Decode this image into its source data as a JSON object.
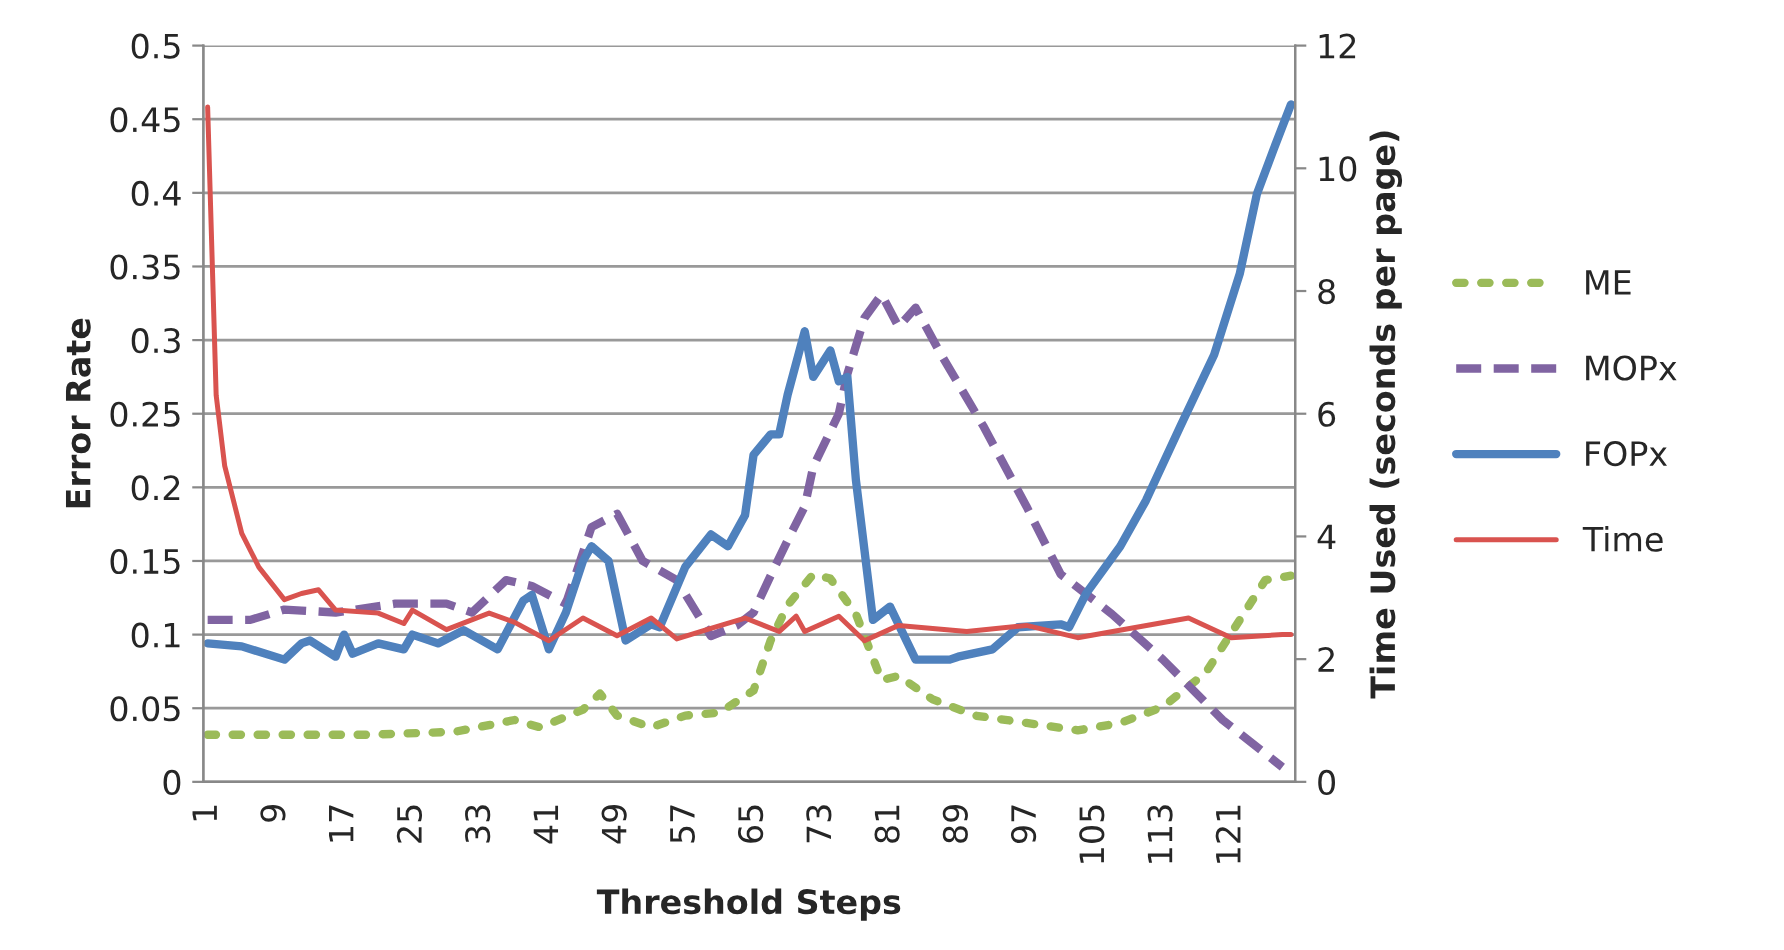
{
  "chart_data": {
    "type": "line",
    "xlabel": "Threshold Steps",
    "ylabel": "Error Rate",
    "y2label": "Time Used (seconds per page)",
    "xlim": [
      0.5,
      128.5
    ],
    "xticks": [
      1,
      9,
      17,
      25,
      33,
      41,
      49,
      57,
      65,
      73,
      81,
      89,
      97,
      105,
      113,
      121
    ],
    "ylim": [
      0,
      0.5
    ],
    "yticks": [
      0,
      0.05,
      0.1,
      0.15,
      0.2,
      0.25,
      0.3,
      0.35,
      0.4,
      0.45,
      0.5
    ],
    "y2lim": [
      0,
      12
    ],
    "y2ticks": [
      0,
      2,
      4,
      6,
      8,
      10,
      12
    ],
    "grid": "y",
    "legend": "right",
    "marker": "none",
    "series": [
      {
        "name": "ME",
        "color": "#9bbb59",
        "line_style": "dotted",
        "x": [
          1,
          10,
          20,
          30,
          37,
          40,
          45,
          47,
          49,
          53,
          57,
          61,
          65,
          67,
          69,
          72,
          74,
          77,
          80,
          82,
          86,
          91,
          97,
          103,
          108,
          113,
          118,
          122,
          125,
          128
        ],
        "values": [
          0.032,
          0.032,
          0.032,
          0.034,
          0.042,
          0.037,
          0.049,
          0.06,
          0.045,
          0.037,
          0.045,
          0.047,
          0.062,
          0.096,
          0.12,
          0.141,
          0.138,
          0.114,
          0.069,
          0.072,
          0.056,
          0.045,
          0.04,
          0.035,
          0.04,
          0.051,
          0.074,
          0.11,
          0.137,
          0.14
        ]
      },
      {
        "name": "MOPx",
        "color": "#8064a2",
        "line_style": "dashed",
        "x": [
          1,
          6,
          10,
          16,
          23,
          29,
          32,
          36,
          39,
          43,
          46,
          49,
          52,
          56,
          60,
          63,
          65,
          67,
          69,
          71,
          72,
          75,
          76,
          78,
          80,
          82,
          84,
          87,
          92,
          97,
          101,
          107,
          113,
          120,
          127
        ],
        "values": [
          0.11,
          0.11,
          0.117,
          0.115,
          0.121,
          0.121,
          0.115,
          0.137,
          0.133,
          0.121,
          0.173,
          0.182,
          0.15,
          0.137,
          0.099,
          0.106,
          0.115,
          0.14,
          0.164,
          0.187,
          0.214,
          0.25,
          0.277,
          0.315,
          0.331,
          0.309,
          0.322,
          0.29,
          0.241,
          0.187,
          0.141,
          0.114,
          0.083,
          0.042,
          0.01
        ]
      },
      {
        "name": "FOPx",
        "color": "#4f81bd",
        "line_style": "solid",
        "x": [
          1,
          5,
          10,
          12,
          13,
          16,
          17,
          18,
          21,
          24,
          25,
          28,
          31,
          35,
          38,
          39,
          41,
          43,
          45,
          46,
          48,
          50,
          53,
          54,
          57,
          60,
          62,
          64,
          65,
          67,
          68,
          69,
          71,
          72,
          74,
          75,
          76,
          77,
          79,
          81,
          84,
          88,
          89,
          93,
          96,
          101,
          102,
          104,
          108,
          111,
          115,
          119,
          122,
          124,
          126,
          128
        ],
        "values": [
          0.094,
          0.092,
          0.083,
          0.094,
          0.096,
          0.085,
          0.1,
          0.087,
          0.094,
          0.09,
          0.1,
          0.094,
          0.103,
          0.09,
          0.123,
          0.127,
          0.09,
          0.115,
          0.15,
          0.16,
          0.15,
          0.096,
          0.107,
          0.105,
          0.146,
          0.168,
          0.16,
          0.181,
          0.222,
          0.236,
          0.236,
          0.263,
          0.306,
          0.275,
          0.293,
          0.272,
          0.275,
          0.205,
          0.11,
          0.119,
          0.083,
          0.083,
          0.085,
          0.09,
          0.105,
          0.107,
          0.105,
          0.128,
          0.16,
          0.191,
          0.241,
          0.29,
          0.345,
          0.399,
          0.43,
          0.46
        ]
      },
      {
        "name": "Time",
        "color": "#d9534f",
        "line_style": "solid",
        "axis": "y2",
        "x": [
          1,
          2,
          3,
          5,
          7,
          10,
          12,
          14,
          16,
          21,
          24,
          25,
          29,
          34,
          37,
          41,
          45,
          49,
          53,
          56,
          60,
          64,
          68,
          70,
          71,
          75,
          78,
          82,
          90,
          97,
          103,
          116,
          121,
          127,
          128
        ],
        "values": [
          11.0,
          6.3,
          5.15,
          4.05,
          3.5,
          2.97,
          3.07,
          3.13,
          2.8,
          2.75,
          2.58,
          2.8,
          2.48,
          2.75,
          2.6,
          2.3,
          2.67,
          2.38,
          2.67,
          2.33,
          2.5,
          2.67,
          2.45,
          2.7,
          2.45,
          2.7,
          2.3,
          2.55,
          2.45,
          2.55,
          2.35,
          2.67,
          2.35,
          2.4,
          2.4
        ]
      }
    ]
  }
}
